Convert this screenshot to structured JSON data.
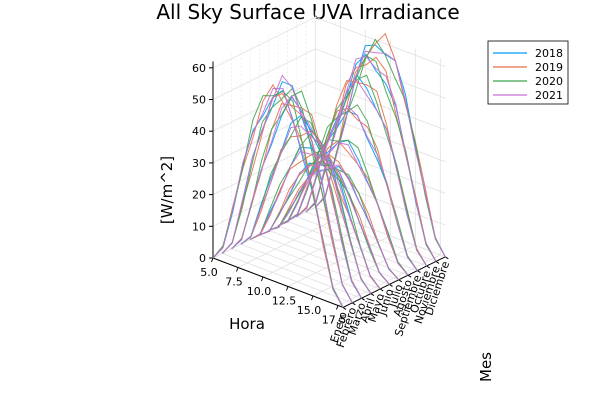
{
  "chart_data": {
    "type": "line",
    "title": "All Sky Surface UVA Irradiance",
    "xlabel": "Hora",
    "ylabel": "Mes",
    "zlabel": "[W/m^2]",
    "x_ticks": [
      "5.0",
      "7.5",
      "10.0",
      "12.5",
      "15.0",
      "17.5"
    ],
    "x_tick_values": [
      5,
      7.5,
      10,
      12.5,
      15,
      17.5
    ],
    "xlim": [
      5,
      18
    ],
    "y_ticks": [
      "Enero",
      "Febrero",
      "Marzo",
      "Abril",
      "Mayo",
      "Junio",
      "Julio",
      "Agosto",
      "Septiembre",
      "Octubre",
      "Noviembre",
      "Diciembre"
    ],
    "z_ticks": [
      "0",
      "10",
      "20",
      "30",
      "40",
      "50",
      "60"
    ],
    "z_tick_values": [
      0,
      10,
      20,
      30,
      40,
      50,
      60
    ],
    "zlim": [
      0,
      62
    ],
    "grid": true,
    "legend_position": "top-right",
    "series": [
      {
        "name": "2018",
        "color": "#009AFA",
        "peaks": [
          59,
          60,
          53,
          47,
          37,
          31,
          28,
          34,
          41,
          50,
          56,
          60
        ]
      },
      {
        "name": "2019",
        "color": "#E36F47",
        "peaks": [
          60,
          58,
          55,
          44,
          35,
          32,
          30,
          33,
          43,
          52,
          57,
          61
        ]
      },
      {
        "name": "2020",
        "color": "#3EA44E",
        "peaks": [
          62,
          59,
          56,
          46,
          39,
          30,
          29,
          36,
          44,
          51,
          55,
          58
        ]
      },
      {
        "name": "2021",
        "color": "#C371D2",
        "peaks": [
          60,
          61,
          54,
          45,
          36,
          31,
          28,
          33,
          42,
          49,
          57,
          59
        ]
      }
    ]
  }
}
